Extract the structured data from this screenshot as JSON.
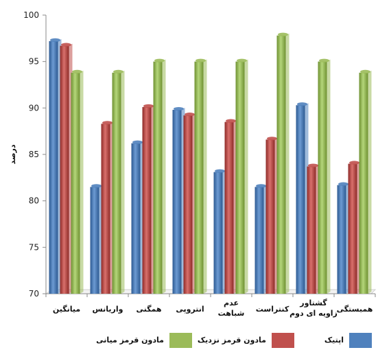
{
  "chart_data": {
    "type": "bar",
    "title": "",
    "xlabel": "",
    "ylabel": "درصد",
    "ylim": [
      70,
      100
    ],
    "yticks": [
      70,
      75,
      80,
      85,
      90,
      95,
      100
    ],
    "grid": false,
    "legend_position": "bottom",
    "categories": [
      "میانگین",
      "واریانس",
      "همگنی",
      "انتروپی",
      "عدم شباهت",
      "کنتراست",
      "گشتاور زاویه ای دوم",
      "همبستگی"
    ],
    "category_lines": [
      [
        "میانگین"
      ],
      [
        "واریانس"
      ],
      [
        "همگنی"
      ],
      [
        "انتروپی"
      ],
      [
        "عدم",
        "شباهت"
      ],
      [
        "کنتراست"
      ],
      [
        "گشتاور",
        "زاویه ای دوم"
      ],
      [
        "همبستگی"
      ]
    ],
    "series": [
      {
        "name": "اپتیک",
        "color": "#4f81bd",
        "values": [
          97.2,
          81.5,
          86.2,
          89.8,
          83.1,
          81.5,
          90.3,
          81.7
        ]
      },
      {
        "name": "مادون قرمز نزدیک",
        "color": "#c0504d",
        "values": [
          96.7,
          88.3,
          90.1,
          89.2,
          88.5,
          86.6,
          83.7,
          84.0
        ]
      },
      {
        "name": "مادون قرمز میانی",
        "color": "#9bbb59",
        "values": [
          93.8,
          93.8,
          95.0,
          95.0,
          95.0,
          97.8,
          95.0,
          93.8
        ]
      }
    ]
  }
}
